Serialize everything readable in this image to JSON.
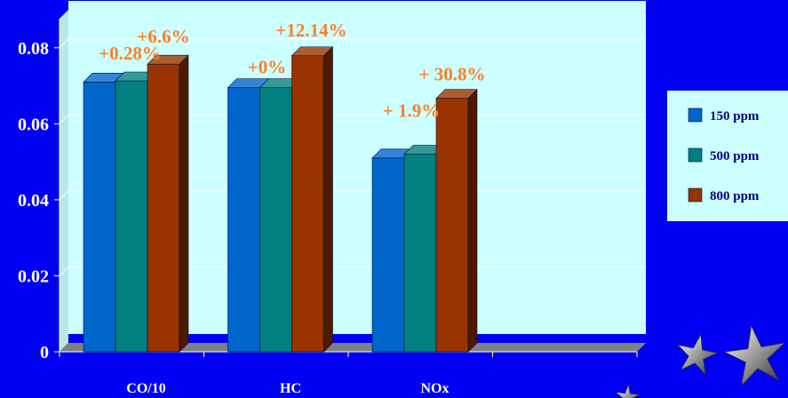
{
  "chart_data": {
    "type": "bar",
    "categories": [
      "CO/10",
      "HC",
      "NOx"
    ],
    "series": [
      {
        "name": "150 ppm",
        "values": [
          0.071,
          0.0695,
          0.051
        ],
        "color": "#0066cc"
      },
      {
        "name": "500 ppm",
        "values": [
          0.0713,
          0.0695,
          0.052
        ],
        "color": "#008080"
      },
      {
        "name": "800 ppm",
        "values": [
          0.0757,
          0.0779,
          0.0667
        ],
        "color": "#993300"
      }
    ],
    "ylim": [
      0,
      0.09
    ],
    "yticks": [
      "0",
      "0.02",
      "0.04",
      "0.06",
      "0.08"
    ],
    "annotations": [
      {
        "text": "+0.28%",
        "category": "CO/10",
        "series": "500 ppm"
      },
      {
        "text": "+6.6%",
        "category": "CO/10",
        "series": "800 ppm"
      },
      {
        "text": "+0%",
        "category": "HC",
        "series": "500 ppm"
      },
      {
        "text": "+12.14%",
        "category": "HC",
        "series": "800 ppm"
      },
      {
        "text": "+ 1.9%",
        "category": "NOx",
        "series": "500 ppm"
      },
      {
        "text": "+ 30.8%",
        "category": "NOx",
        "series": "800 ppm"
      }
    ],
    "grid": true,
    "legend_position": "right",
    "plot_background": "#ccffff",
    "page_background": "#0000f2"
  }
}
